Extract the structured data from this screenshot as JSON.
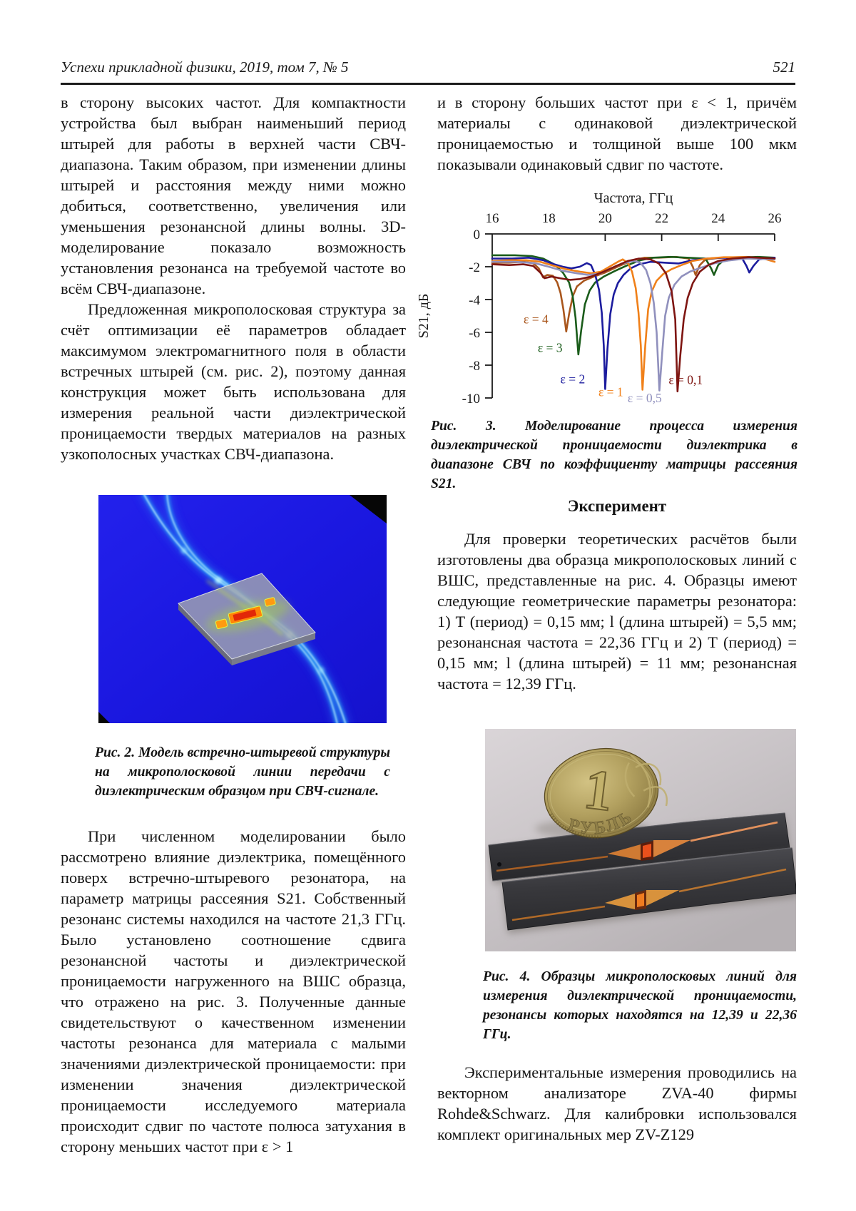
{
  "header": {
    "journal_line": "Успехи прикладной физики, 2019, том 7, № 5",
    "page_number": "521"
  },
  "left_column": {
    "para_continuation": "в сторону высоких частот. Для компактности устройства был выбран наименьший период штырей для работы в верхней части СВЧ-диапазона. Таким образом, при изменении длины штырей и расстояния между ними можно добиться, соответственно, увеличения или уменьшения резонансной длины волны. 3D-моделирование показало возможность установления резонанса на требуемой частоте во всём СВЧ-диапазоне.",
    "para_proposed": "Предложенная микрополосковая структура за счёт оптимизации её параметров обладает максимумом электромагнитного поля в области встречных штырей (см. рис. 2), поэтому данная конструкция может быть использована для измерения реальной части диэлектрической проницаемости твердых материалов на разных узкополосных участках СВЧ-диапазона.",
    "fig2_caption": "Рис. 2. Модель встречно-штыревой структуры на микрополосковой линии передачи с диэлектрическим образцом при СВЧ-сигнале.",
    "para_numerical": "При численном моделировании было рассмотрено влияние диэлектрика, помещённого поверх встречно-штыревого резонатора, на параметр матрицы рассеяния S21. Собственный резонанс системы находился на частоте 21,3 ГГц. Было установлено соотношение сдвига резонансной частоты и диэлектрической проницаемости нагруженного на ВШС образца, что отражено на рис. 3. Полученные данные свидетельствуют о качественном изменении частоты резонанса для материала с малыми значениями диэлектрической проницаемости: при изменении значения диэлектрической проницаемости исследуемого материала происходит сдвиг по частоте полюса затухания в сторону меньших частот при ε > 1"
  },
  "right_column": {
    "para_continuation": "и в сторону больших частот при ε < 1, причём материалы с одинаковой диэлектрической проницаемостью и толщиной выше 100 мкм показывали одинаковый сдвиг по частоте.",
    "fig3_caption": "Рис. 3. Моделирование процесса измерения диэлектрической проницаемости диэлектрика в диапазоне СВЧ по коэффициенту матрицы рассеяния S21.",
    "section_heading": "Эксперимент",
    "para_experiment": "Для проверки теоретических расчётов были изготовлены два образца микрополосковых линий с ВШС, представленные на рис. 4. Образцы имеют следующие геометрические параметры резонатора: 1) T (период) = 0,15 мм; l (длина штырей) = 5,5 мм; резонансная частота = 22,36 ГГц и 2) T (период) = 0,15 мм; l (длина штырей) = 11 мм; резонансная частота = 12,39 ГГц.",
    "fig4_caption": "Рис. 4. Образцы микрополосковых линий для измерения диэлектрической проницаемости, резонансы которых находятся на 12,39 и 22,36 ГГц.",
    "para_measurements": "Экспериментальные измерения проводились на векторном анализаторе ZVA-40 фирмы Rohde&Schwarz. Для калибровки использовался комплект оригинальных мер ZV-Z129"
  },
  "figure4": {
    "coin_numeral": "1",
    "coin_word": "РУБЛЬ"
  },
  "chart_data": {
    "type": "line",
    "title": "",
    "xlabel": "Частота, ГГц",
    "ylabel": "S21, дБ",
    "xlim": [
      16,
      26
    ],
    "ylim": [
      -10,
      0
    ],
    "x_ticks": [
      16,
      18,
      20,
      22,
      24,
      26
    ],
    "x_tick_marks": [
      20,
      22,
      24,
      26
    ],
    "y_ticks": [
      0,
      -2,
      -4,
      -6,
      -8,
      -10
    ],
    "grid": false,
    "legend": "inline-labels",
    "series": [
      {
        "name": "eps4",
        "color": "#a9561c",
        "label": {
          "text": "ε = 4",
          "f": 17.55,
          "db": -5.45
        },
        "points": [
          [
            16,
            -1.75
          ],
          [
            16.6,
            -1.75
          ],
          [
            17.1,
            -1.7
          ],
          [
            17.45,
            -1.78
          ],
          [
            17.65,
            -2.1
          ],
          [
            17.8,
            -2.65
          ],
          [
            17.95,
            -2.5
          ],
          [
            18.15,
            -2.55
          ],
          [
            18.3,
            -2.95
          ],
          [
            18.42,
            -3.6
          ],
          [
            18.52,
            -4.6
          ],
          [
            18.62,
            -5.95
          ],
          [
            18.72,
            -4.9
          ],
          [
            18.85,
            -3.8
          ],
          [
            19.0,
            -3.2
          ],
          [
            19.25,
            -2.85
          ],
          [
            19.6,
            -2.6
          ],
          [
            20.0,
            -2.35
          ],
          [
            20.5,
            -1.95
          ],
          [
            21.0,
            -1.6
          ],
          [
            21.4,
            -1.45
          ],
          [
            21.9,
            -1.45
          ],
          [
            22.5,
            -1.4
          ],
          [
            22.95,
            -1.5
          ],
          [
            23.1,
            -2.0
          ],
          [
            23.2,
            -2.5
          ],
          [
            23.35,
            -1.9
          ],
          [
            23.55,
            -1.55
          ],
          [
            24.1,
            -1.45
          ],
          [
            25.0,
            -1.4
          ],
          [
            26,
            -1.5
          ]
        ]
      },
      {
        "name": "eps3",
        "color": "#1a5c1a",
        "label": {
          "text": "ε = 3",
          "f": 18.05,
          "db": -7.2
        },
        "points": [
          [
            16,
            -1.3
          ],
          [
            16.8,
            -1.3
          ],
          [
            17.4,
            -1.35
          ],
          [
            17.8,
            -1.5
          ],
          [
            18.2,
            -1.85
          ],
          [
            18.5,
            -2.35
          ],
          [
            18.72,
            -2.95
          ],
          [
            18.85,
            -3.8
          ],
          [
            18.95,
            -5.1
          ],
          [
            19.05,
            -7.35
          ],
          [
            19.15,
            -5.9
          ],
          [
            19.28,
            -4.3
          ],
          [
            19.45,
            -3.45
          ],
          [
            19.65,
            -2.95
          ],
          [
            19.95,
            -2.6
          ],
          [
            20.35,
            -2.25
          ],
          [
            20.8,
            -1.9
          ],
          [
            21.25,
            -1.6
          ],
          [
            21.7,
            -1.45
          ],
          [
            22.3,
            -1.4
          ],
          [
            22.9,
            -1.45
          ],
          [
            23.55,
            -1.5
          ],
          [
            23.75,
            -2.1
          ],
          [
            23.85,
            -2.5
          ],
          [
            24.0,
            -1.9
          ],
          [
            24.2,
            -1.6
          ],
          [
            24.7,
            -1.45
          ],
          [
            25.4,
            -1.4
          ],
          [
            26,
            -1.45
          ]
        ]
      },
      {
        "name": "eps2",
        "color": "#1c1c9e",
        "label": {
          "text": "ε = 2",
          "f": 18.85,
          "db": -9.1
        },
        "points": [
          [
            16,
            -1.5
          ],
          [
            16.7,
            -1.5
          ],
          [
            17.3,
            -1.45
          ],
          [
            17.8,
            -1.6
          ],
          [
            18.2,
            -1.85
          ],
          [
            18.5,
            -2.0
          ],
          [
            18.8,
            -2.1
          ],
          [
            19.1,
            -2.0
          ],
          [
            19.35,
            -1.78
          ],
          [
            19.5,
            -1.9
          ],
          [
            19.65,
            -2.5
          ],
          [
            19.78,
            -3.4
          ],
          [
            19.88,
            -4.8
          ],
          [
            19.95,
            -6.8
          ],
          [
            20.0,
            -9.45
          ],
          [
            20.08,
            -7.0
          ],
          [
            20.18,
            -4.9
          ],
          [
            20.3,
            -3.7
          ],
          [
            20.45,
            -3.0
          ],
          [
            20.65,
            -2.5
          ],
          [
            20.9,
            -2.1
          ],
          [
            21.2,
            -1.85
          ],
          [
            21.6,
            -1.7
          ],
          [
            22.1,
            -1.75
          ],
          [
            22.6,
            -1.8
          ],
          [
            23.1,
            -1.6
          ],
          [
            23.6,
            -1.5
          ],
          [
            24.2,
            -1.45
          ],
          [
            24.85,
            -1.5
          ],
          [
            25.0,
            -1.95
          ],
          [
            25.1,
            -2.35
          ],
          [
            25.25,
            -1.95
          ],
          [
            25.45,
            -1.55
          ],
          [
            26,
            -1.45
          ]
        ]
      },
      {
        "name": "eps1",
        "color": "#f08019",
        "label": {
          "text": "ε = 1",
          "f": 20.2,
          "db": -9.9
        },
        "points": [
          [
            16,
            -1.65
          ],
          [
            16.6,
            -1.6
          ],
          [
            17.2,
            -1.6
          ],
          [
            17.7,
            -1.7
          ],
          [
            18.1,
            -1.9
          ],
          [
            18.6,
            -2.15
          ],
          [
            19.1,
            -2.3
          ],
          [
            19.5,
            -2.4
          ],
          [
            19.85,
            -2.3
          ],
          [
            20.15,
            -2.0
          ],
          [
            20.45,
            -1.7
          ],
          [
            20.62,
            -1.55
          ],
          [
            20.8,
            -1.75
          ],
          [
            20.95,
            -2.3
          ],
          [
            21.08,
            -3.3
          ],
          [
            21.18,
            -4.8
          ],
          [
            21.26,
            -6.8
          ],
          [
            21.32,
            -9.5
          ],
          [
            21.42,
            -6.8
          ],
          [
            21.52,
            -4.6
          ],
          [
            21.65,
            -3.5
          ],
          [
            21.82,
            -2.85
          ],
          [
            22.05,
            -2.45
          ],
          [
            22.35,
            -2.15
          ],
          [
            22.7,
            -1.9
          ],
          [
            23.1,
            -1.65
          ],
          [
            23.6,
            -1.5
          ],
          [
            24.2,
            -1.42
          ],
          [
            25.0,
            -1.42
          ],
          [
            25.6,
            -1.5
          ],
          [
            26,
            -1.7
          ]
        ]
      },
      {
        "name": "eps05",
        "color": "#9090bd",
        "label": {
          "text": "ε = 0,5",
          "f": 21.4,
          "db": -10.25
        },
        "points": [
          [
            16,
            -1.7
          ],
          [
            16.8,
            -1.7
          ],
          [
            17.5,
            -1.78
          ],
          [
            18.0,
            -2.0
          ],
          [
            18.5,
            -2.25
          ],
          [
            19.0,
            -2.4
          ],
          [
            19.4,
            -2.5
          ],
          [
            19.8,
            -2.42
          ],
          [
            20.2,
            -2.1
          ],
          [
            20.6,
            -1.8
          ],
          [
            21.0,
            -1.65
          ],
          [
            21.25,
            -1.75
          ],
          [
            21.45,
            -2.2
          ],
          [
            21.6,
            -3.0
          ],
          [
            21.72,
            -4.2
          ],
          [
            21.82,
            -6.0
          ],
          [
            21.92,
            -9.55
          ],
          [
            22.02,
            -7.2
          ],
          [
            22.12,
            -5.0
          ],
          [
            22.25,
            -3.9
          ],
          [
            22.45,
            -3.1
          ],
          [
            22.7,
            -2.6
          ],
          [
            23.0,
            -2.3
          ],
          [
            23.4,
            -2.05
          ],
          [
            23.85,
            -1.8
          ],
          [
            24.35,
            -1.62
          ],
          [
            25.0,
            -1.5
          ],
          [
            26,
            -1.55
          ]
        ]
      },
      {
        "name": "eps01",
        "color": "#7e1511",
        "label": {
          "text": "ε = 0,1",
          "f": 22.85,
          "db": -9.15
        },
        "points": [
          [
            16,
            -1.85
          ],
          [
            16.6,
            -1.9
          ],
          [
            17.1,
            -1.85
          ],
          [
            17.45,
            -1.95
          ],
          [
            17.7,
            -2.35
          ],
          [
            17.85,
            -2.7
          ],
          [
            18.1,
            -2.6
          ],
          [
            18.4,
            -2.7
          ],
          [
            18.75,
            -2.8
          ],
          [
            19.1,
            -2.75
          ],
          [
            19.5,
            -2.6
          ],
          [
            19.95,
            -2.3
          ],
          [
            20.4,
            -1.95
          ],
          [
            20.8,
            -1.65
          ],
          [
            21.2,
            -1.5
          ],
          [
            21.6,
            -1.55
          ],
          [
            21.9,
            -1.8
          ],
          [
            22.15,
            -2.4
          ],
          [
            22.35,
            -3.5
          ],
          [
            22.48,
            -5.2
          ],
          [
            22.56,
            -9.6
          ],
          [
            22.66,
            -7.4
          ],
          [
            22.78,
            -5.2
          ],
          [
            22.92,
            -3.9
          ],
          [
            23.1,
            -3.0
          ],
          [
            23.35,
            -2.3
          ],
          [
            23.65,
            -1.9
          ],
          [
            24.0,
            -1.65
          ],
          [
            24.5,
            -1.5
          ],
          [
            25.1,
            -1.42
          ],
          [
            26,
            -1.5
          ]
        ]
      }
    ]
  }
}
